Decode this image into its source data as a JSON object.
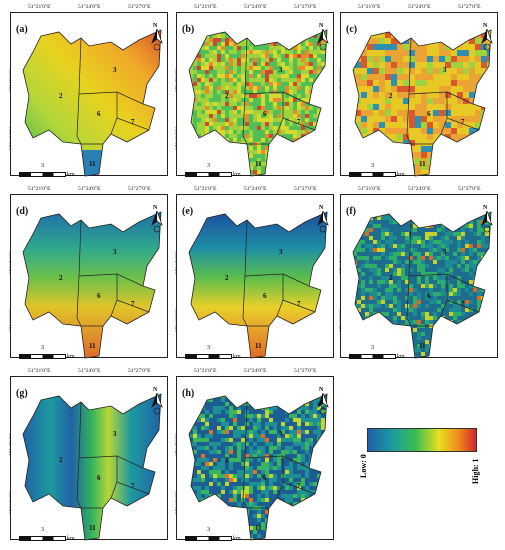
{
  "coords": {
    "top": [
      "51°21'0\"E",
      "51°24'0\"E",
      "51°27'0\"E"
    ],
    "left": [
      "35°45'0\"N",
      "35°42'0\"N"
    ]
  },
  "north_label": "N",
  "scale": {
    "value": "3",
    "unit": "km"
  },
  "districts": [
    "2",
    "3",
    "6",
    "7",
    "11"
  ],
  "panels": [
    {
      "label": "(a)",
      "pattern": "smooth",
      "palette": [
        "#2fb556",
        "#b4d63a",
        "#e8d21e",
        "#f0a62a",
        "#d8562a"
      ]
    },
    {
      "label": "(b)",
      "pattern": "noisy",
      "palette": [
        "#4fbf58",
        "#9fd33e",
        "#d9d82c",
        "#e98b2c",
        "#c94a2e"
      ]
    },
    {
      "label": "(c)",
      "pattern": "mottled",
      "palette": [
        "#2e8fb0",
        "#9fd33e",
        "#e8c824",
        "#eba334",
        "#d85a2c"
      ]
    },
    {
      "label": "(d)",
      "pattern": "vertical",
      "palette": [
        "#1f6fa8",
        "#2fa88e",
        "#6cc14a",
        "#e1c42a",
        "#de6a2a"
      ]
    },
    {
      "label": "(e)",
      "pattern": "vertical-strong",
      "palette": [
        "#1d4f9e",
        "#1e8fa6",
        "#5cbd4c",
        "#e8d02a",
        "#e26a28"
      ]
    },
    {
      "label": "(f)",
      "pattern": "dark-noisy",
      "palette": [
        "#1e6c8e",
        "#1e8a92",
        "#2fae6a",
        "#c8d02c",
        "#d86a2a"
      ]
    },
    {
      "label": "(g)",
      "pattern": "horizontal",
      "palette": [
        "#1f62a6",
        "#1e9aa0",
        "#34b45c",
        "#b9d636",
        "#e8cc28"
      ]
    },
    {
      "label": "(h)",
      "pattern": "dark-noisy2",
      "palette": [
        "#1c5e94",
        "#1e8f95",
        "#3ab55e",
        "#c3d330",
        "#e0702c"
      ]
    }
  ],
  "legend": {
    "low": "Low: 0",
    "high": "High: 1"
  }
}
